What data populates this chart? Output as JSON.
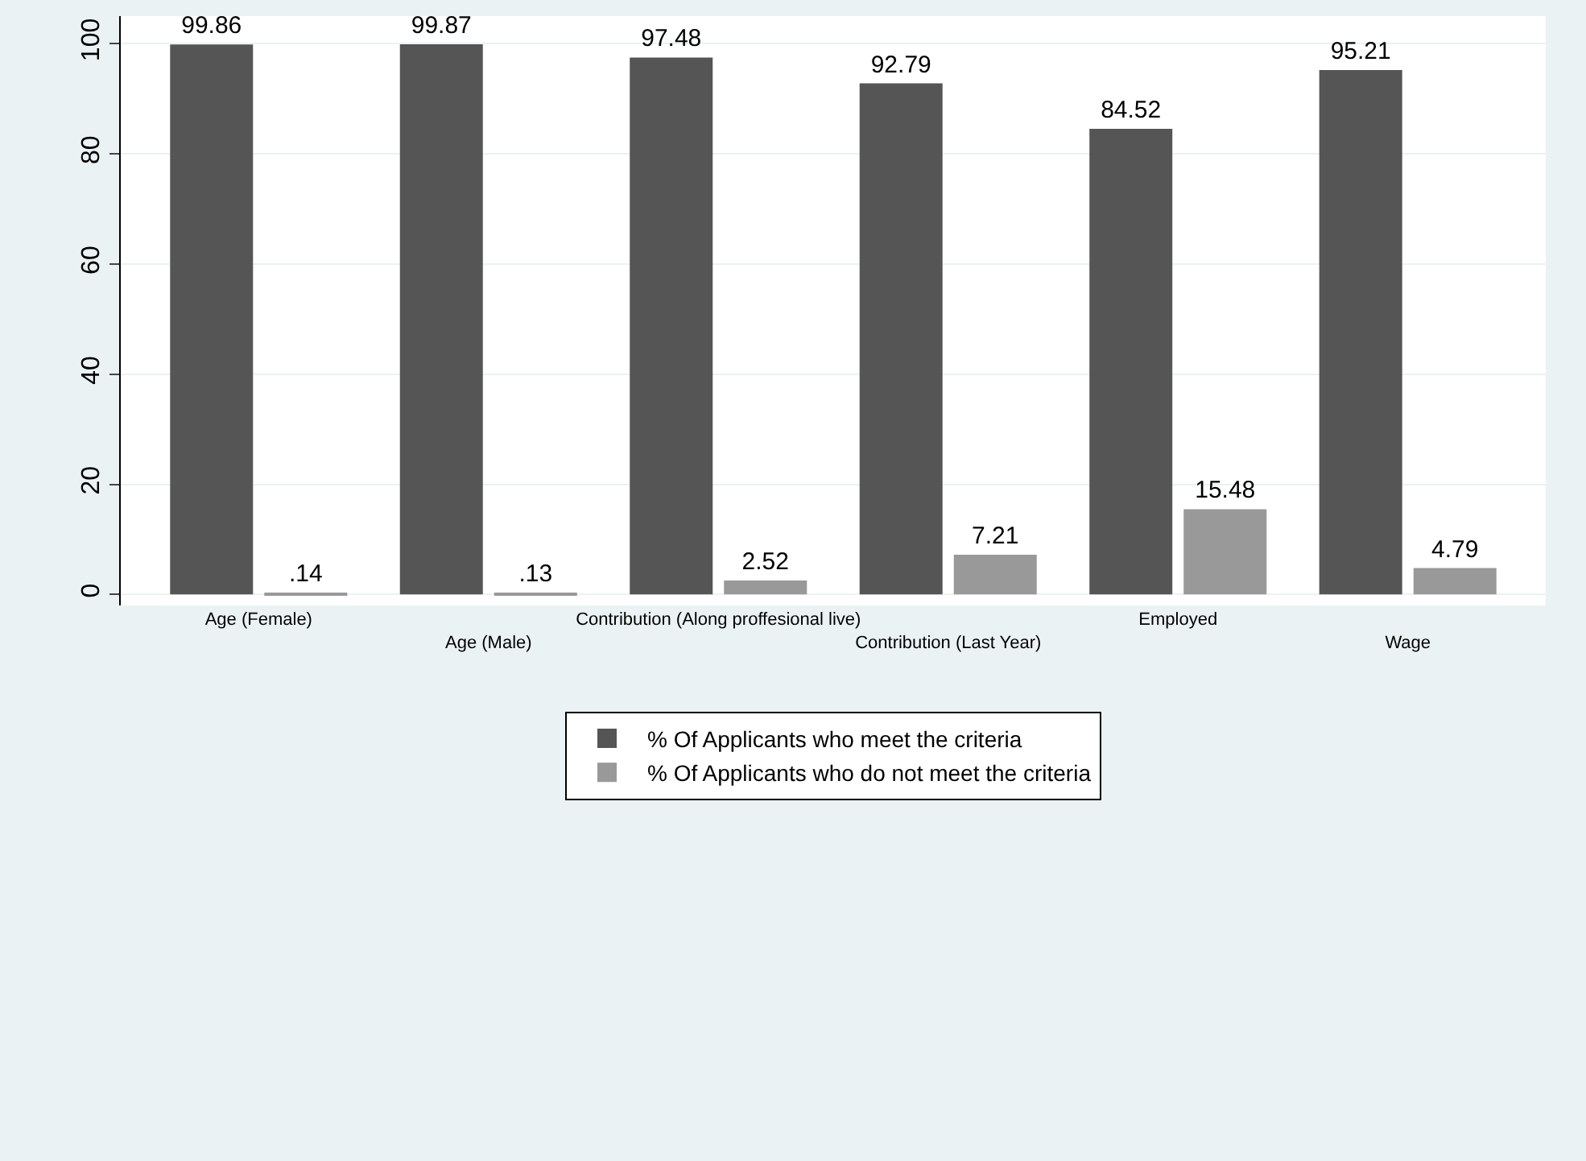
{
  "chart_data": {
    "type": "bar",
    "categories": [
      "Age (Female)",
      "Age (Male)",
      "Contribution (Along proffesional live)",
      "Contribution (Last Year)",
      "Employed",
      "Wage"
    ],
    "series": [
      {
        "name": "% Of Applicants who meet the criteria",
        "color": "#555555",
        "values": [
          99.86,
          99.87,
          97.48,
          92.79,
          84.52,
          95.21
        ],
        "value_labels": [
          "99.86",
          "99.87",
          "97.48",
          "92.79",
          "84.52",
          "95.21"
        ]
      },
      {
        "name": "% Of Applicants who do not meet the criteria",
        "color": "#999999",
        "values": [
          0.14,
          0.13,
          2.52,
          7.21,
          15.48,
          4.79
        ],
        "value_labels": [
          ".14",
          ".13",
          "2.52",
          "7.21",
          "15.48",
          "4.79"
        ]
      }
    ],
    "ylim": [
      -2,
      105
    ],
    "yticks": [
      0,
      20,
      40,
      60,
      80,
      100
    ],
    "grid": "y",
    "legend": "bottom"
  }
}
